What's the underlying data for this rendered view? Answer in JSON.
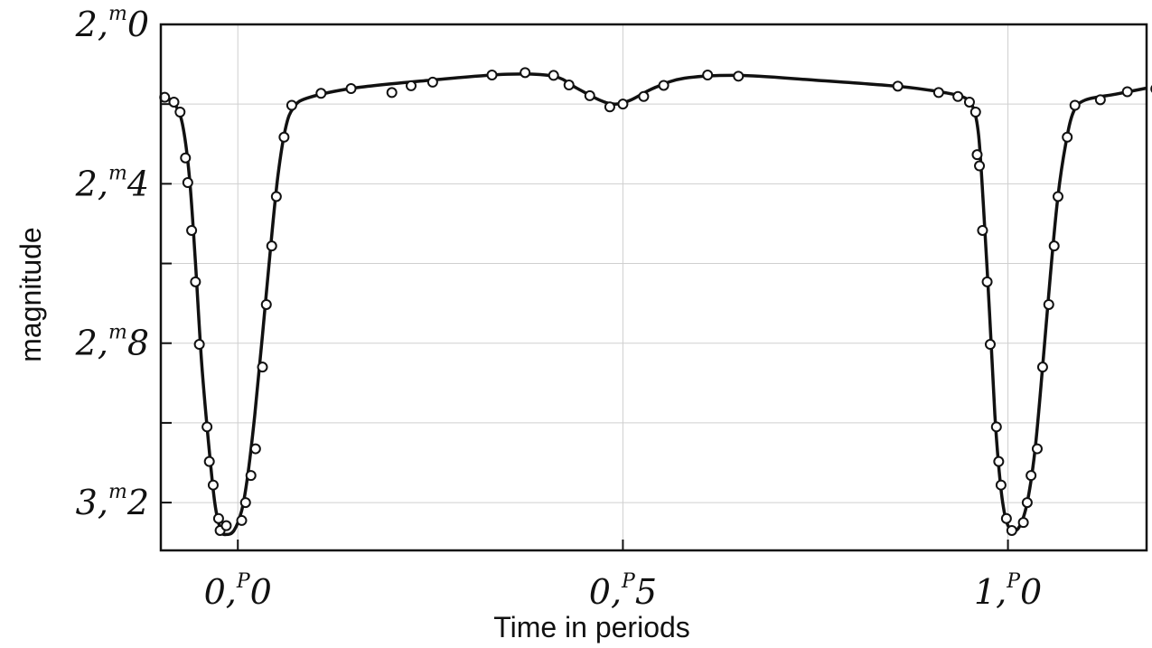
{
  "chart_data": {
    "type": "scatter",
    "xlabel": "Time in periods",
    "ylabel": "magnitude",
    "xlim": [
      -0.1,
      1.18
    ],
    "ylim": [
      2.0,
      3.32
    ],
    "y_inverted": true,
    "grid": true,
    "x_ticks": [
      {
        "value": 0.0,
        "main": "0,",
        "sup": "P",
        "tail": "0"
      },
      {
        "value": 0.5,
        "main": "0,",
        "sup": "P",
        "tail": "5"
      },
      {
        "value": 1.0,
        "main": "1,",
        "sup": "P",
        "tail": "0"
      }
    ],
    "y_ticks": [
      {
        "value": 2.0,
        "main": "2,",
        "sup": "m",
        "tail": "0"
      },
      {
        "value": 2.4,
        "main": "2,",
        "sup": "m",
        "tail": "4"
      },
      {
        "value": 2.8,
        "main": "2,",
        "sup": "m",
        "tail": "8"
      },
      {
        "value": 3.2,
        "main": "3,",
        "sup": "m",
        "tail": "2"
      }
    ],
    "y_minor_ticks": [
      2.2,
      2.6,
      3.0
    ],
    "series": [
      {
        "style": "observations",
        "points": [
          [
            -0.095,
            2.183
          ],
          [
            -0.083,
            2.195
          ],
          [
            -0.075,
            2.22
          ],
          [
            -0.068,
            2.335
          ],
          [
            -0.065,
            2.397
          ],
          [
            -0.06,
            2.517
          ],
          [
            -0.055,
            2.646
          ],
          [
            -0.05,
            2.803
          ],
          [
            -0.04,
            3.01
          ],
          [
            -0.037,
            3.097
          ],
          [
            -0.032,
            3.156
          ],
          [
            -0.025,
            3.24
          ],
          [
            -0.023,
            3.27
          ],
          [
            -0.015,
            3.258
          ],
          [
            0.005,
            3.245
          ],
          [
            0.01,
            3.2
          ],
          [
            0.017,
            3.132
          ],
          [
            0.023,
            3.065
          ],
          [
            0.032,
            2.86
          ],
          [
            0.037,
            2.703
          ],
          [
            0.044,
            2.556
          ],
          [
            0.05,
            2.432
          ],
          [
            0.06,
            2.283
          ],
          [
            0.07,
            2.203
          ],
          [
            0.108,
            2.173
          ],
          [
            0.147,
            2.161
          ],
          [
            0.2,
            2.171
          ],
          [
            0.225,
            2.154
          ],
          [
            0.253,
            2.145
          ],
          [
            0.33,
            2.127
          ],
          [
            0.373,
            2.121
          ],
          [
            0.41,
            2.128
          ],
          [
            0.43,
            2.152
          ],
          [
            0.457,
            2.179
          ],
          [
            0.483,
            2.207
          ],
          [
            0.5,
            2.2
          ],
          [
            0.527,
            2.181
          ],
          [
            0.553,
            2.153
          ],
          [
            0.61,
            2.127
          ],
          [
            0.65,
            2.13
          ],
          [
            0.857,
            2.155
          ],
          [
            0.91,
            2.171
          ],
          [
            0.935,
            2.181
          ],
          [
            0.95,
            2.195
          ],
          [
            0.958,
            2.22
          ],
          [
            0.96,
            2.327
          ],
          [
            0.963,
            2.355
          ],
          [
            0.967,
            2.517
          ],
          [
            0.973,
            2.646
          ],
          [
            0.977,
            2.803
          ],
          [
            0.985,
            3.01
          ],
          [
            0.988,
            3.097
          ],
          [
            0.991,
            3.156
          ],
          [
            0.998,
            3.24
          ],
          [
            1.005,
            3.27
          ],
          [
            1.02,
            3.25
          ],
          [
            1.025,
            3.2
          ],
          [
            1.03,
            3.132
          ],
          [
            1.038,
            3.065
          ],
          [
            1.045,
            2.86
          ],
          [
            1.053,
            2.703
          ],
          [
            1.06,
            2.556
          ],
          [
            1.065,
            2.432
          ],
          [
            1.077,
            2.283
          ],
          [
            1.087,
            2.203
          ],
          [
            1.12,
            2.189
          ],
          [
            1.155,
            2.169
          ],
          [
            1.192,
            2.162
          ]
        ]
      },
      {
        "style": "fitted-curve",
        "points": [
          [
            -0.095,
            2.18
          ],
          [
            -0.082,
            2.2
          ],
          [
            -0.072,
            2.25
          ],
          [
            -0.063,
            2.38
          ],
          [
            -0.055,
            2.6
          ],
          [
            -0.047,
            2.85
          ],
          [
            -0.038,
            3.05
          ],
          [
            -0.03,
            3.2
          ],
          [
            -0.022,
            3.27
          ],
          [
            -0.015,
            3.28
          ],
          [
            -0.005,
            3.27
          ],
          [
            0.005,
            3.22
          ],
          [
            0.013,
            3.13
          ],
          [
            0.022,
            2.98
          ],
          [
            0.032,
            2.78
          ],
          [
            0.043,
            2.55
          ],
          [
            0.052,
            2.38
          ],
          [
            0.062,
            2.26
          ],
          [
            0.072,
            2.21
          ],
          [
            0.09,
            2.185
          ],
          [
            0.15,
            2.16
          ],
          [
            0.25,
            2.14
          ],
          [
            0.35,
            2.125
          ],
          [
            0.41,
            2.13
          ],
          [
            0.44,
            2.16
          ],
          [
            0.47,
            2.19
          ],
          [
            0.49,
            2.2
          ],
          [
            0.51,
            2.19
          ],
          [
            0.54,
            2.16
          ],
          [
            0.58,
            2.135
          ],
          [
            0.65,
            2.128
          ],
          [
            0.75,
            2.14
          ],
          [
            0.86,
            2.156
          ],
          [
            0.92,
            2.172
          ],
          [
            0.945,
            2.185
          ],
          [
            0.955,
            2.21
          ],
          [
            0.962,
            2.28
          ],
          [
            0.968,
            2.45
          ],
          [
            0.976,
            2.72
          ],
          [
            0.983,
            2.98
          ],
          [
            0.99,
            3.15
          ],
          [
            0.997,
            3.24
          ],
          [
            1.005,
            3.27
          ],
          [
            1.015,
            3.26
          ],
          [
            1.025,
            3.2
          ],
          [
            1.035,
            3.07
          ],
          [
            1.045,
            2.86
          ],
          [
            1.055,
            2.63
          ],
          [
            1.065,
            2.43
          ],
          [
            1.075,
            2.3
          ],
          [
            1.085,
            2.22
          ],
          [
            1.1,
            2.19
          ],
          [
            1.14,
            2.175
          ],
          [
            1.18,
            2.16
          ]
        ]
      }
    ]
  }
}
